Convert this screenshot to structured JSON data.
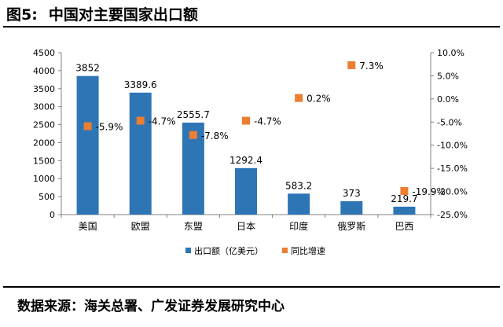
{
  "figure": {
    "number_label": "图5:",
    "title": "中国对主要国家出口额",
    "source": "数据来源：海关总署、广发证券发展研究中心"
  },
  "colors": {
    "bar": "#2E75B6",
    "marker": "#ED7D31",
    "axis": "#808080"
  },
  "chart_data": {
    "type": "bar",
    "title": "中国对主要国家出口额",
    "categories": [
      "美国",
      "欧盟",
      "东盟",
      "日本",
      "印度",
      "俄罗斯",
      "巴西"
    ],
    "series": [
      {
        "name": "出口额（亿美元）",
        "type": "bar",
        "axis": "left",
        "values": [
          3852,
          3389.6,
          2555.7,
          1292.4,
          583.2,
          373,
          219.7
        ],
        "labels": [
          "3852",
          "3389.6",
          "2555.7",
          "1292.4",
          "583.2",
          "373",
          "219.7"
        ]
      },
      {
        "name": "同比增速",
        "type": "scatter",
        "axis": "right",
        "values": [
          -5.9,
          -4.7,
          -7.8,
          -4.7,
          0.2,
          7.3,
          -19.9
        ],
        "labels": [
          "-5.9%",
          "-4.7%",
          "-7.8%",
          "-4.7%",
          "0.2%",
          "7.3%",
          "-19.9%"
        ]
      }
    ],
    "y_left": {
      "min": 0,
      "max": 4500,
      "ticks": [
        "0",
        "500",
        "1000",
        "1500",
        "2000",
        "2500",
        "3000",
        "3500",
        "4000",
        "4500"
      ]
    },
    "y_right": {
      "min": -25,
      "max": 10,
      "ticks": [
        "-25.0%",
        "-20.0%",
        "-15.0%",
        "-10.0%",
        "-5.0%",
        "0.0%",
        "5.0%",
        "10.0%"
      ]
    },
    "grid": false,
    "legend": "bottom",
    "legend_labels": [
      "出口额（亿美元）",
      "同比增速"
    ]
  }
}
